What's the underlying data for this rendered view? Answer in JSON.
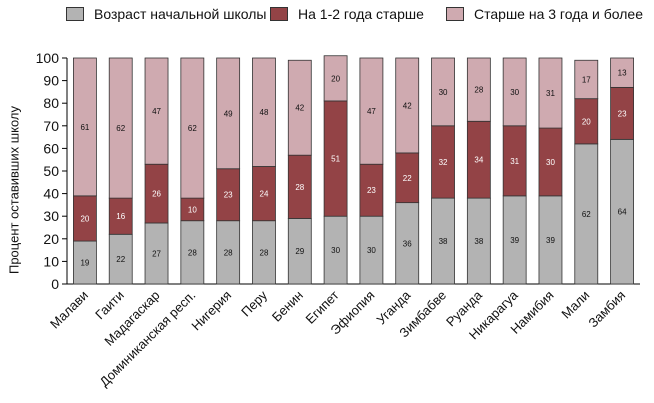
{
  "chart_data": {
    "type": "bar",
    "stacked": true,
    "ylabel": "Процент оставивших школу",
    "ylim": [
      0,
      100
    ],
    "yticks": [
      0,
      10,
      20,
      30,
      40,
      50,
      60,
      70,
      80,
      90,
      100
    ],
    "grid": false,
    "legend_position": "top",
    "categories": [
      "Малави",
      "Гаити",
      "Мадагаскар",
      "Доминиканская респ.",
      "Нигерия",
      "Перу",
      "Бенин",
      "Египет",
      "Эфиопия",
      "Уганда",
      "Зимбабве",
      "Руанда",
      "Никарагуа",
      "Намибия",
      "Мали",
      "Замбия"
    ],
    "series": [
      {
        "name": "Возраст начальной школы",
        "color": "#b3b3b3",
        "label_color": "#111111",
        "values": [
          19,
          22,
          27,
          28,
          28,
          28,
          29,
          30,
          30,
          36,
          38,
          38,
          39,
          39,
          62,
          64
        ]
      },
      {
        "name": "На 1-2 года старше",
        "color": "#934346",
        "label_color": "#ffffff",
        "values": [
          20,
          16,
          26,
          10,
          23,
          24,
          28,
          51,
          23,
          22,
          32,
          34,
          31,
          30,
          20,
          23
        ]
      },
      {
        "name": "Старше на 3 года и более",
        "color": "#cfaab0",
        "label_color": "#111111",
        "values": [
          61,
          62,
          47,
          62,
          49,
          48,
          42,
          20,
          47,
          42,
          30,
          28,
          30,
          31,
          17,
          13
        ]
      }
    ]
  }
}
